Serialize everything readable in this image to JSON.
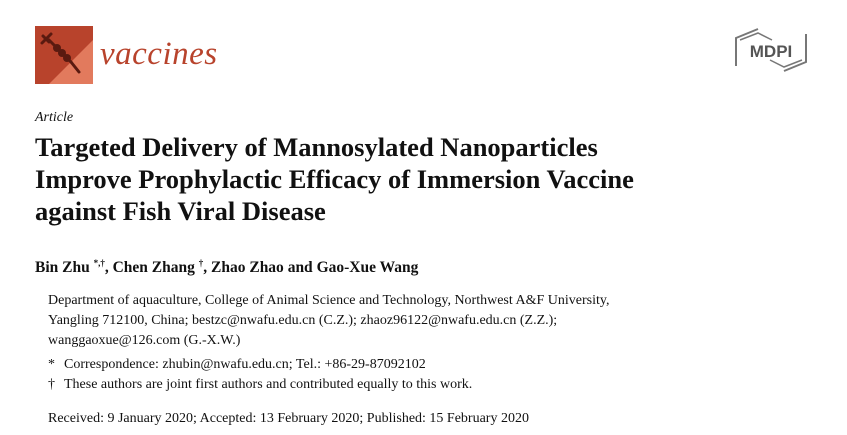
{
  "journal": {
    "name": "vaccines",
    "publisher_logo": "MDPI",
    "brand_color": "#b8432c"
  },
  "article_type": "Article",
  "title_lines": [
    "Targeted Delivery of Mannosylated Nanoparticles",
    "Improve Prophylactic Efficacy of Immersion Vaccine",
    "against Fish Viral Disease"
  ],
  "authors": [
    {
      "name": "Bin Zhu",
      "marks": "*,†",
      "sep": ", "
    },
    {
      "name": "Chen Zhang",
      "marks": "†",
      "sep": ", "
    },
    {
      "name": "Zhao Zhao",
      "marks": "",
      "sep": " and "
    },
    {
      "name": "Gao-Xue Wang",
      "marks": "",
      "sep": ""
    }
  ],
  "affiliation_lines": [
    "Department of aquaculture, College of Animal Science and Technology, Northwest A&F University,",
    "Yangling 712100, China; bestzc@nwafu.edu.cn (C.Z.); zhaoz96122@nwafu.edu.cn (Z.Z.);",
    "wanggaoxue@126.com (G.-X.W.)"
  ],
  "notes": [
    {
      "mark": "*",
      "text": "Correspondence: zhubin@nwafu.edu.cn; Tel.: +86-29-87092102"
    },
    {
      "mark": "†",
      "text": "These authors are joint first authors and contributed equally to this work."
    }
  ],
  "dates": "Received: 9 January 2020; Accepted: 13 February 2020; Published: 15 February 2020"
}
